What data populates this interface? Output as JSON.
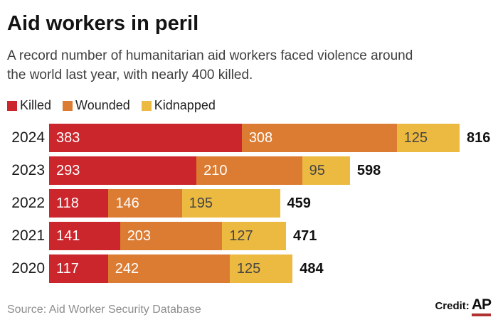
{
  "header": {
    "title": "Aid workers in peril",
    "subtitle": "A record number of humanitarian aid workers faced violence around the world last year, with nearly 400 killed.",
    "subtitle_lines": [
      "A record number of humanitarian aid workers faced violence around",
      "the world last year, with nearly 400 killed."
    ]
  },
  "legend": [
    {
      "label": "Killed",
      "color": "#cb262c"
    },
    {
      "label": "Wounded",
      "color": "#dc7c33"
    },
    {
      "label": "Kidnapped",
      "color": "#ecba40"
    }
  ],
  "chart_data": {
    "type": "bar",
    "orientation": "horizontal",
    "stacked": true,
    "title": "Aid workers in peril",
    "categories": [
      "2024",
      "2023",
      "2022",
      "2021",
      "2020"
    ],
    "series": [
      {
        "name": "Killed",
        "color": "#cb262c",
        "text_color": "#ffffff",
        "values": [
          383,
          293,
          118,
          141,
          117
        ]
      },
      {
        "name": "Wounded",
        "color": "#dc7c33",
        "text_color": "#ffffff",
        "values": [
          308,
          210,
          146,
          203,
          242
        ]
      },
      {
        "name": "Kidnapped",
        "color": "#ecba40",
        "text_color": "#454545",
        "values": [
          125,
          95,
          195,
          127,
          125
        ]
      }
    ],
    "totals": [
      816,
      598,
      459,
      471,
      484
    ],
    "xlim": [
      0,
      816
    ],
    "value_labels": "inside-start",
    "total_labels": "outside-end",
    "legend_position": "top",
    "grid": false
  },
  "footer": {
    "source": "Source: Aid Worker Security Database",
    "credit_label": "Credit:",
    "credit_org": "AP",
    "credit_underline_color": "#b0322f"
  }
}
